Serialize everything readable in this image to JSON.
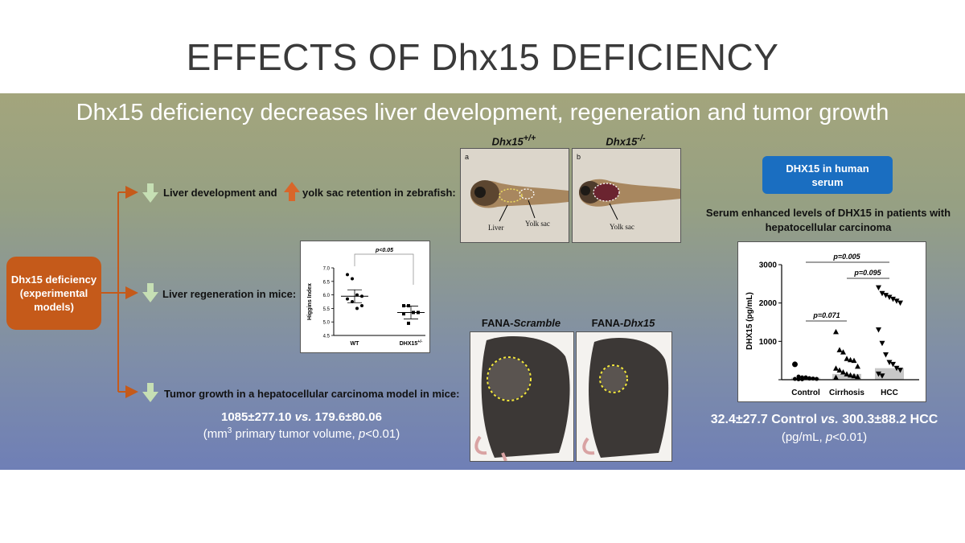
{
  "slide": {
    "title": "EFFECTS OF Dhx15 DEFICIENCY",
    "subtitle": "Dhx15 deficiency decreases liver development, regeneration and tumor growth"
  },
  "origin_box": {
    "label": "Dhx15 deficiency (experimental models)"
  },
  "rows": {
    "zebrafish": {
      "text_a": "Liver development and",
      "text_b": "yolk sac retention in zebrafish:"
    },
    "regeneration": {
      "text": "Liver regeneration in mice:"
    },
    "tumor": {
      "text": "Tumor growth in a hepatocellular carcinoma model in mice:"
    }
  },
  "zebrafish_panel": {
    "header_left_base": "Dhx15",
    "header_left_sup": "+/+",
    "header_right_base": "Dhx15",
    "header_right_sup": "-/-",
    "panel_a": {
      "letter": "a",
      "label_liver": "Liver",
      "label_yolk": "Yolk sac"
    },
    "panel_b": {
      "letter": "b",
      "label_yolk": "Yolk sac"
    }
  },
  "higgins_chart": {
    "ylabel": "Higgins Index",
    "pvalue": "p<0.05",
    "yticks": [
      "4.5",
      "5.0",
      "5.5",
      "6.0",
      "6.5",
      "7.0"
    ],
    "wt_label": "WT",
    "het_label_base": "DHX15",
    "het_label_sup": "+/-"
  },
  "mouse_photos": {
    "left_prefix": "FANA-",
    "left_italic": "Scramble",
    "right_prefix": "FANA-",
    "right_italic": "Dhx15"
  },
  "tumor_result": {
    "stat_a": "1085±277.10 ",
    "stat_vs": "vs.",
    "stat_b": " 179.6±80.06",
    "units_a": "(mm",
    "units_sup": "3",
    "units_b": " primary tumor volume, ",
    "units_p": "p",
    "units_c": "<0.01)"
  },
  "human": {
    "box_label": "DHX15 in human serum",
    "caption": "Serum enhanced levels of DHX15 in patients with hepatocellular carcinoma"
  },
  "serum_result": {
    "stat_a": "32.4±27.7 Control ",
    "stat_vs": "vs.",
    "stat_b": " 300.3±88.2 HCC",
    "units_a": "(pg/mL, ",
    "units_p": "p",
    "units_b": "<0.01)"
  },
  "chart_data": [
    {
      "type": "scatter",
      "ylabel": "Higgins Index",
      "ylim": [
        4.5,
        7.0
      ],
      "yticks": [
        4.5,
        5.0,
        5.5,
        6.0,
        6.5,
        7.0
      ],
      "categories": [
        "WT",
        "DHX15+/-"
      ],
      "series": [
        {
          "points": [
            6.75,
            6.6,
            6.0,
            5.95,
            5.85,
            5.75,
            5.5,
            5.6
          ]
        },
        {
          "points": [
            5.6,
            5.6,
            5.35,
            5.35,
            5.3,
            4.95
          ]
        }
      ],
      "means": [
        5.95,
        5.35
      ],
      "annotations": [
        "p<0.05"
      ]
    },
    {
      "type": "scatter",
      "ylabel": "DHX15 (pg/mL)",
      "ylim": [
        0,
        3000
      ],
      "yticks": [
        0,
        1000,
        2000,
        3000
      ],
      "categories": [
        "Control",
        "Cirrhosis",
        "HCC"
      ],
      "medians": [
        50,
        150,
        300
      ],
      "series": [
        {
          "points": [
            400,
            80,
            60,
            50,
            40,
            30,
            20,
            20,
            10,
            10,
            60,
            30
          ]
        },
        {
          "points": [
            1250,
            780,
            720,
            550,
            520,
            500,
            350,
            300,
            250,
            200,
            150,
            120,
            100,
            80,
            60
          ]
        },
        {
          "points": [
            2400,
            2250,
            2200,
            2150,
            2100,
            2050,
            2000,
            1300,
            950,
            650,
            450,
            400,
            300,
            250,
            150,
            100
          ]
        }
      ],
      "annotations": [
        "p=0.005",
        "p=0.095",
        "p=0.071"
      ]
    }
  ]
}
